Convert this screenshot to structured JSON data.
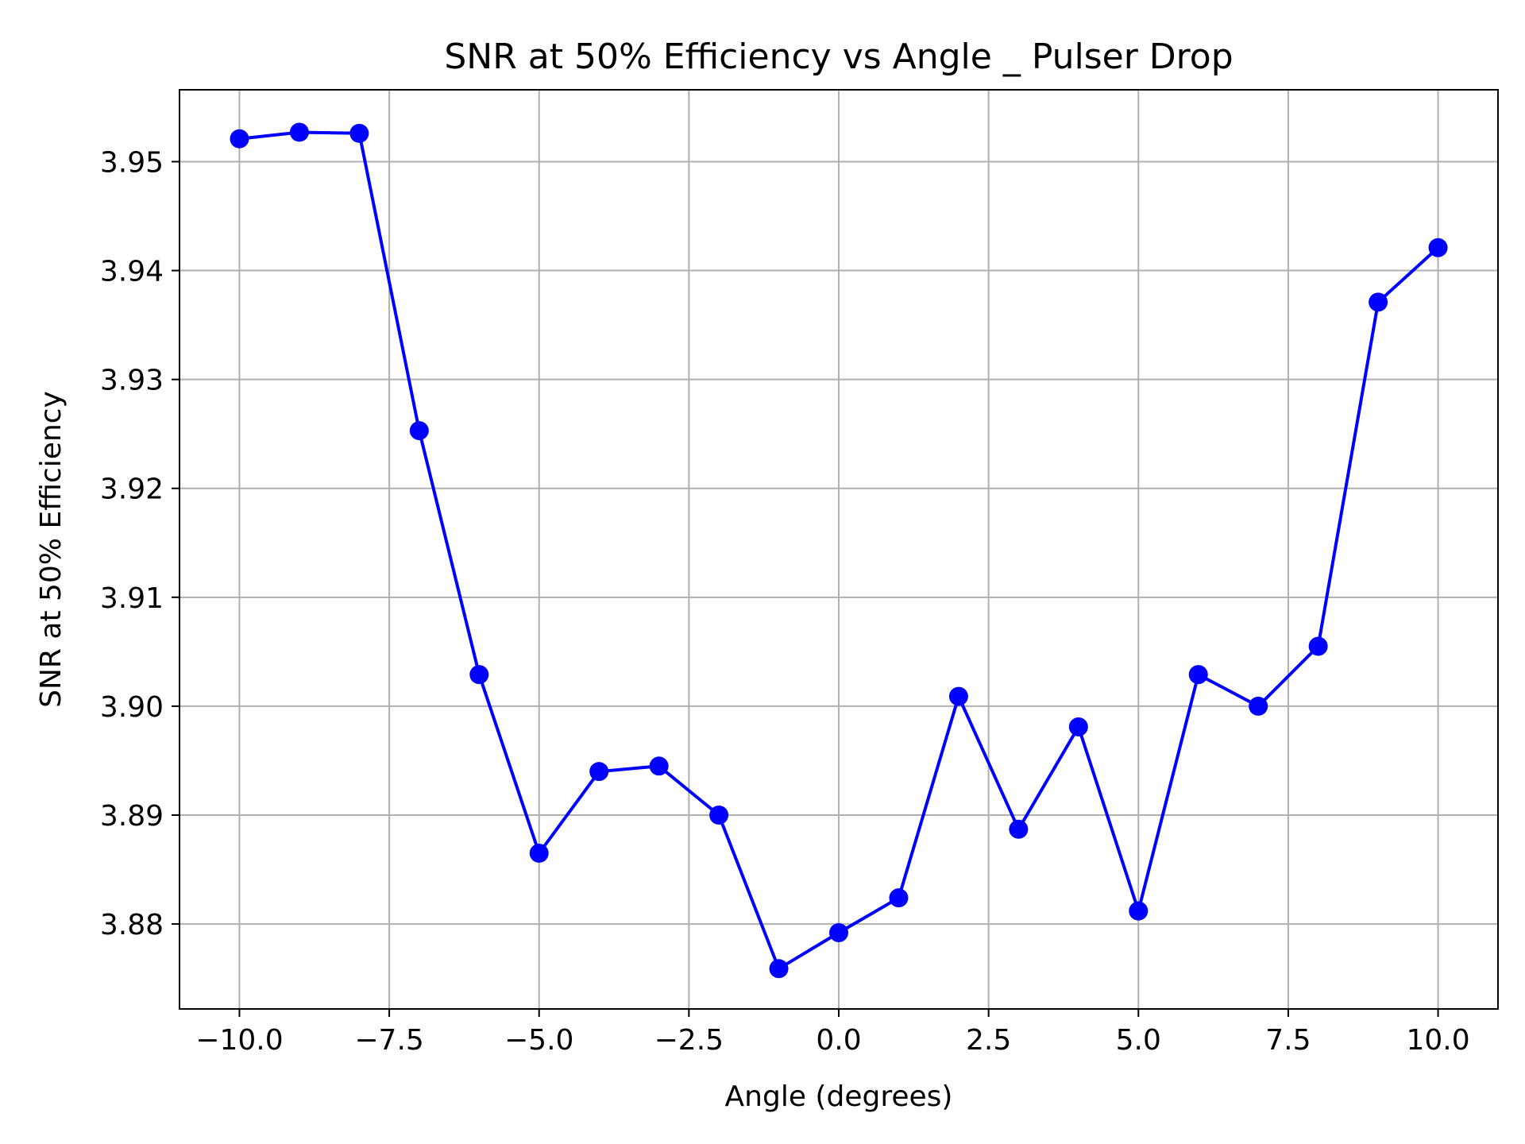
{
  "chart_data": {
    "type": "line",
    "title": "SNR at 50% Efficiency vs Angle _ Pulser Drop",
    "xlabel": "Angle (degrees)",
    "ylabel": "SNR at 50% Efficiency",
    "xlim": [
      -11,
      11
    ],
    "ylim": [
      3.8722,
      3.9566
    ],
    "grid": true,
    "xticks": [
      -10.0,
      -7.5,
      -5.0,
      -2.5,
      0.0,
      2.5,
      5.0,
      7.5,
      10.0
    ],
    "xtick_labels": [
      "−10.0",
      "−7.5",
      "−5.0",
      "−2.5",
      "0.0",
      "2.5",
      "5.0",
      "7.5",
      "10.0"
    ],
    "yticks": [
      3.88,
      3.89,
      3.9,
      3.91,
      3.92,
      3.93,
      3.94,
      3.95
    ],
    "ytick_labels": [
      "3.88",
      "3.89",
      "3.90",
      "3.91",
      "3.92",
      "3.93",
      "3.94",
      "3.95"
    ],
    "series": [
      {
        "color": "#0000ff",
        "marker": "circle",
        "x": [
          -10,
          -9,
          -8,
          -7,
          -6,
          -5,
          -4,
          -3,
          -2,
          -1,
          0,
          1,
          2,
          3,
          4,
          5,
          6,
          7,
          8,
          9,
          10
        ],
        "y": [
          3.9521,
          3.9527,
          3.9526,
          3.9253,
          3.9029,
          3.8865,
          3.894,
          3.8945,
          3.89,
          3.8759,
          3.8792,
          3.8824,
          3.9009,
          3.8887,
          3.8981,
          3.8812,
          3.9029,
          3.9,
          3.9055,
          3.9371,
          3.9421
        ]
      }
    ]
  }
}
